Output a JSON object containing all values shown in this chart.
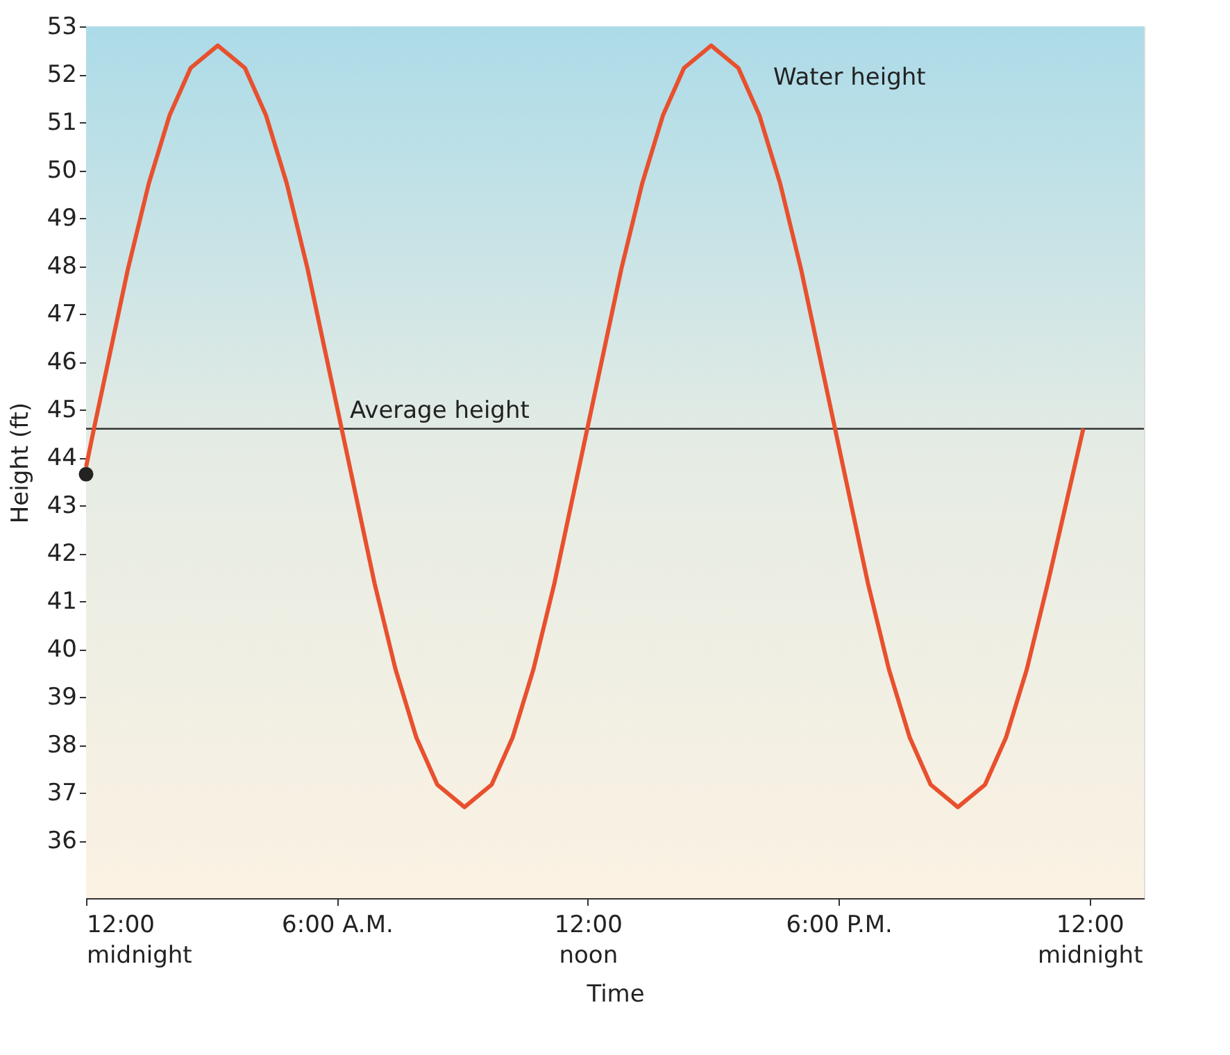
{
  "chart_data": {
    "type": "line",
    "xlabel": "Time",
    "ylabel": "Height (ft)",
    "xlim": [
      0,
      25.3
    ],
    "ylim": [
      34.8,
      53
    ],
    "xticks": [
      {
        "value": 0,
        "label": "12:00\nmidnight"
      },
      {
        "value": 6,
        "label": "6:00 A.M."
      },
      {
        "value": 12,
        "label": "12:00\nnoon"
      },
      {
        "value": 18,
        "label": "6:00 P.M."
      },
      {
        "value": 24,
        "label": "12:00\nmidnight"
      }
    ],
    "yticks": [
      36,
      37,
      38,
      39,
      40,
      41,
      42,
      43,
      44,
      45,
      46,
      47,
      48,
      49,
      50,
      51,
      52,
      53
    ],
    "grid": false,
    "series": [
      {
        "color": "#e8502e",
        "x": [
          0,
          0.2,
          1,
          1.5,
          2,
          2.5,
          3.15,
          3.8,
          4.3,
          4.8,
          5.3,
          6.1,
          6.9,
          7.4,
          7.9,
          8.4,
          9.05,
          9.7,
          10.2,
          10.7,
          11.2,
          12,
          12.8,
          13.3,
          13.8,
          14.3,
          14.95,
          15.6,
          16.1,
          16.6,
          17.1,
          17.9,
          18.7,
          19.2,
          19.7,
          20.2,
          20.85,
          21.5,
          22,
          22.5,
          23,
          23.85
        ],
        "values": [
          43.8,
          44.65,
          47.93,
          49.72,
          51.15,
          52.13,
          52.6,
          52.13,
          51.15,
          49.72,
          47.93,
          44.65,
          41.37,
          39.58,
          38.15,
          37.17,
          36.7,
          37.17,
          38.15,
          39.58,
          41.37,
          44.65,
          47.93,
          49.72,
          51.15,
          52.13,
          52.6,
          52.13,
          51.15,
          49.72,
          47.93,
          44.65,
          41.37,
          39.58,
          38.15,
          37.17,
          36.7,
          37.17,
          38.15,
          39.58,
          41.37,
          44.6
        ]
      },
      {
        "type": "scatter",
        "color": "#222222",
        "marker": "circle",
        "x": [
          0
        ],
        "values": [
          43.65
        ]
      }
    ],
    "ref_lines": [
      {
        "axis": "y",
        "value": 44.6,
        "label": "Average height",
        "color": "#333333"
      }
    ],
    "annotations": [
      "Water height"
    ]
  }
}
